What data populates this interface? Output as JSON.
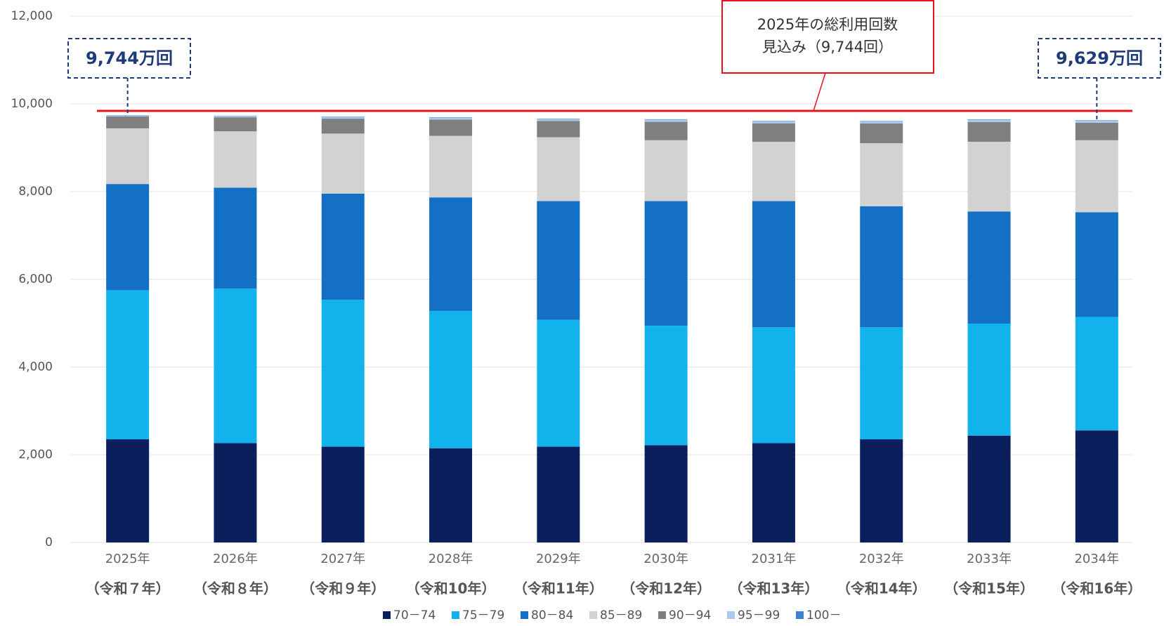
{
  "chart_data": {
    "type": "stacked-bar",
    "categories": [
      "2025年",
      "2026年",
      "2027年",
      "2028年",
      "2029年",
      "2030年",
      "2031年",
      "2032年",
      "2033年",
      "2034年"
    ],
    "category_sublabels": [
      "（令和７年）",
      "（令和８年）",
      "（令和９年）",
      "（令和10年）",
      "（令和11年）",
      "（令和12年）",
      "（令和13年）",
      "（令和14年）",
      "（令和15年）",
      "（令和16年）"
    ],
    "series": [
      {
        "name": "70－74",
        "color": "#0b1f5c",
        "values": [
          2352,
          2267,
          2183,
          2149,
          2183,
          2217,
          2267,
          2352,
          2437,
          2555
        ]
      },
      {
        "name": "75－79",
        "color": "#12b2ec",
        "values": [
          3401,
          3520,
          3350,
          3130,
          2893,
          2724,
          2640,
          2555,
          2555,
          2589
        ]
      },
      {
        "name": "80－84",
        "color": "#1470c4",
        "values": [
          2420,
          2301,
          2420,
          2589,
          2707,
          2842,
          2876,
          2758,
          2555,
          2386
        ]
      },
      {
        "name": "85－89",
        "color": "#d2d2d2",
        "values": [
          1269,
          1286,
          1370,
          1404,
          1456,
          1388,
          1354,
          1438,
          1590,
          1641
        ]
      },
      {
        "name": "90－94",
        "color": "#7f7f7f",
        "values": [
          270,
          320,
          340,
          370,
          370,
          420,
          420,
          450,
          450,
          400
        ]
      },
      {
        "name": "95－99",
        "color": "#a9c9ee",
        "values": [
          27,
          30,
          40,
          45,
          45,
          50,
          45,
          45,
          50,
          50
        ]
      },
      {
        "name": "100－",
        "color": "#3b82d0",
        "values": [
          5,
          6,
          7,
          8,
          8,
          9,
          9,
          10,
          10,
          8
        ]
      }
    ],
    "ylim": [
      0,
      12000
    ],
    "yticks": [
      0,
      {
        "value": 2000,
        "label": "2,000"
      },
      {
        "value": 4000,
        "label": "4,000"
      },
      {
        "value": 6000,
        "label": "6,000"
      },
      {
        "value": 8000,
        "label": "8,000"
      },
      {
        "value": 10000,
        "label": "10,000"
      },
      {
        "value": 12000,
        "label": "12,000"
      }
    ],
    "grid": true,
    "reference_line": {
      "value": 9744,
      "color": "#e8141b"
    },
    "callout": [
      "2025年の総利用回数",
      "見込み（9,744回）"
    ],
    "annotations": [
      {
        "text": "9,744万回",
        "category": 0
      },
      {
        "text": "9,629万回",
        "category": 9
      }
    ]
  }
}
